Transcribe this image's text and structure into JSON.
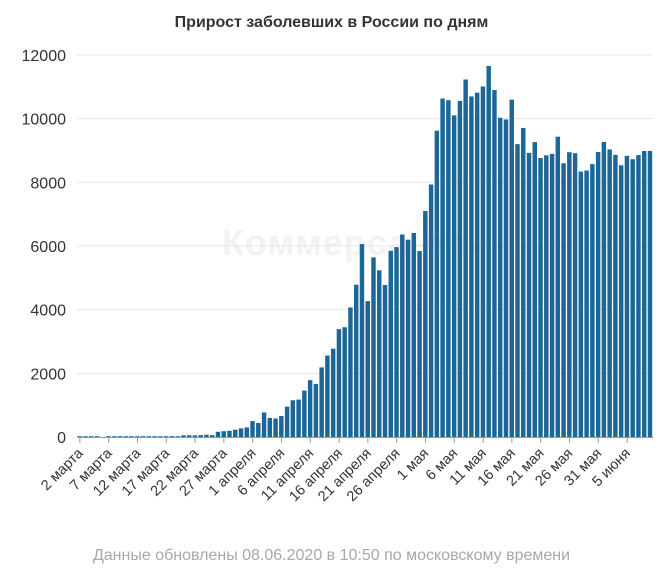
{
  "title": "Прирост заболевших в России по дням",
  "footer": "Данные обновлены 08.06.2020 в 10:50 по московскому времени",
  "watermark": "Коммерсантъ",
  "colors": {
    "bar": "#1d6796",
    "grid": "#e6e6e6",
    "axis": "#999999"
  },
  "chart_data": {
    "type": "bar",
    "title": "Прирост заболевших в России по дням",
    "xlabel": "",
    "ylabel": "",
    "ylim": [
      0,
      12000
    ],
    "y_ticks": [
      0,
      2000,
      4000,
      6000,
      8000,
      10000,
      12000
    ],
    "grid": true,
    "x_tick_labels": [
      "2 марта",
      "7 марта",
      "12 марта",
      "17 марта",
      "22 марта",
      "27 марта",
      "1 апреля",
      "6 апреля",
      "11 апреля",
      "16 апреля",
      "21 апреля",
      "26 апреля",
      "1 мая",
      "6 мая",
      "11 мая",
      "16 мая",
      "21 мая",
      "26 мая",
      "31 мая",
      "5 июня"
    ],
    "x_tick_every": 5,
    "start_label": "2 марта",
    "values": [
      1,
      1,
      1,
      1,
      0,
      3,
      3,
      4,
      2,
      10,
      10,
      6,
      11,
      15,
      14,
      16,
      27,
      25,
      53,
      54,
      52,
      58,
      71,
      57,
      163,
      182,
      196,
      228,
      270,
      302,
      501,
      440,
      771,
      601,
      582,
      658,
      954,
      1154,
      1175,
      1459,
      1786,
      1667,
      2186,
      2558,
      2774,
      3388,
      3448,
      4070,
      4785,
      6060,
      4268,
      5642,
      5236,
      4774,
      5849,
      5966,
      6361,
      6198,
      6411,
      5841,
      7099,
      7933,
      9623,
      10633,
      10581,
      10102,
      10559,
      11231,
      10699,
      10817,
      11012,
      11656,
      10899,
      10028,
      9974,
      10598,
      9200,
      9709,
      8926,
      9263,
      8764,
      8849,
      8894,
      9434,
      8599,
      8946,
      8915,
      8338,
      8371,
      8572,
      8952,
      9268,
      9035,
      8863,
      8536,
      8831,
      8726,
      8855,
      8984,
      8985
    ]
  }
}
